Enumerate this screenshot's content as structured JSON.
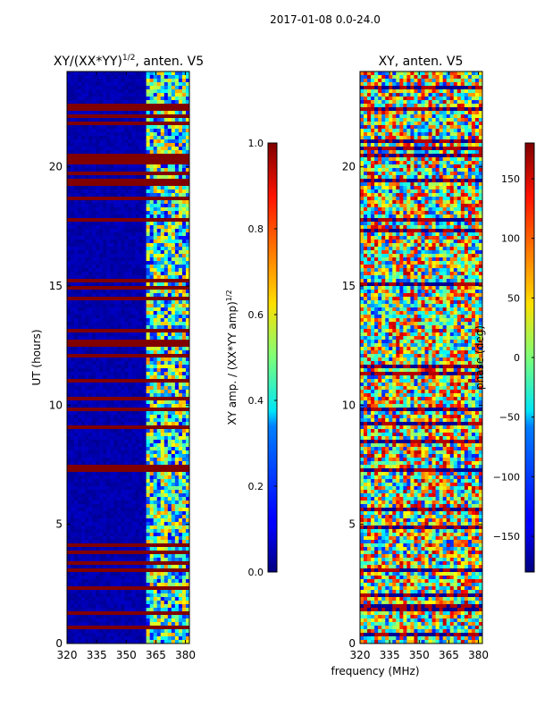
{
  "figure_title": "2017-01-08 0.0-24.0",
  "chart_data": [
    {
      "type": "heatmap",
      "title_main": "XY/(XX*YY)",
      "title_exponent": "1/2",
      "title_suffix": ", anten. V5",
      "ylabel": "UT (hours)",
      "xlabel": "",
      "xlim": [
        320,
        382
      ],
      "ylim": [
        0,
        24
      ],
      "xticks": [
        "320",
        "335",
        "350",
        "365",
        "380"
      ],
      "xtick_values": [
        320,
        335,
        350,
        365,
        380
      ],
      "yticks": [
        "0",
        "5",
        "10",
        "15",
        "20"
      ],
      "ytick_values": [
        0,
        5,
        10,
        15,
        20
      ],
      "colorbar": {
        "label_main": "XY amp. / (XX*YY amp)",
        "label_exponent": "1/2",
        "range": [
          0.0,
          1.0
        ],
        "tick_values": [
          0.0,
          0.2,
          0.4,
          0.6,
          0.8,
          1.0
        ],
        "tick_labels": [
          "0.0",
          "0.2",
          "0.4",
          "0.6",
          "0.8",
          "1.0"
        ],
        "colormap": "jet"
      }
    },
    {
      "type": "heatmap",
      "title_main": "XY, anten. V5",
      "ylabel": "",
      "xlabel": "frequency (MHz)",
      "xlim": [
        320,
        382
      ],
      "ylim": [
        0,
        24
      ],
      "xticks": [
        "320",
        "335",
        "350",
        "365",
        "380"
      ],
      "xtick_values": [
        320,
        335,
        350,
        365,
        380
      ],
      "yticks": [
        "0",
        "5",
        "10",
        "15",
        "20"
      ],
      "ytick_values": [
        0,
        5,
        10,
        15,
        20
      ],
      "colorbar": {
        "label_main": "phase (deg)",
        "range": [
          -180,
          180
        ],
        "tick_values": [
          -150,
          -100,
          -50,
          0,
          50,
          100,
          150
        ],
        "tick_labels": [
          "−150",
          "−100",
          "−50",
          "0",
          "50",
          "100",
          "150"
        ],
        "colormap": "jet"
      }
    }
  ],
  "colors": {
    "jet_dark_blue": "#00007f",
    "jet_dark_red": "#7f0000",
    "axes_line": "#000000",
    "background": "#ffffff"
  }
}
